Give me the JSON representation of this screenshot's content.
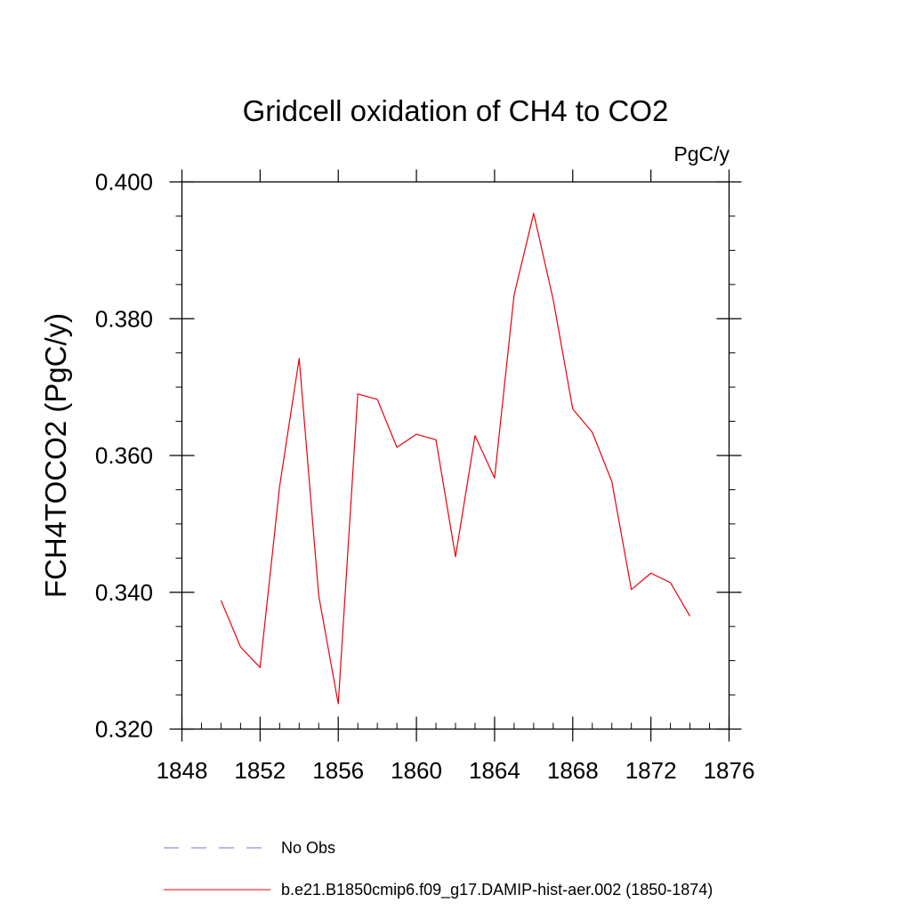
{
  "chart_data": {
    "type": "line",
    "title": "Gridcell oxidation of CH4 to CO2",
    "units": "PgC/y",
    "ylabel": "FCH4TOCO2  (PgC/y)",
    "xlabel": "",
    "xlim": [
      1848,
      1876
    ],
    "ylim": [
      0.32,
      0.4
    ],
    "x_ticks": [
      "1848",
      "1852",
      "1856",
      "1860",
      "1864",
      "1868",
      "1872",
      "1876"
    ],
    "y_ticks": [
      "0.320",
      "0.340",
      "0.360",
      "0.380",
      "0.400"
    ],
    "grid": false,
    "legend_position": "bottom",
    "series": [
      {
        "name": "b.e21.B1850cmip6.f09_g17.DAMIP-hist-aer.002 (1850-1874)",
        "color": "#e8000b",
        "dash": "solid",
        "x": [
          1850,
          1851,
          1852,
          1853,
          1854,
          1855,
          1856,
          1857,
          1858,
          1859,
          1860,
          1861,
          1862,
          1863,
          1864,
          1865,
          1866,
          1867,
          1868,
          1869,
          1870,
          1871,
          1872,
          1873,
          1874
        ],
        "values": [
          0.3388,
          0.332,
          0.329,
          0.3555,
          0.3742,
          0.3395,
          0.3237,
          0.369,
          0.3682,
          0.3612,
          0.3631,
          0.3623,
          0.3452,
          0.3629,
          0.3567,
          0.3835,
          0.3954,
          0.3828,
          0.3668,
          0.3634,
          0.3562,
          0.3404,
          0.3428,
          0.3414,
          0.3365
        ]
      }
    ],
    "legend": [
      {
        "label": "No Obs",
        "color": "#7b6fd0",
        "dash": "dashed"
      },
      {
        "label": "b.e21.B1850cmip6.f09_g17.DAMIP-hist-aer.002 (1850-1874)",
        "color": "#e8000b",
        "dash": "solid"
      }
    ]
  }
}
